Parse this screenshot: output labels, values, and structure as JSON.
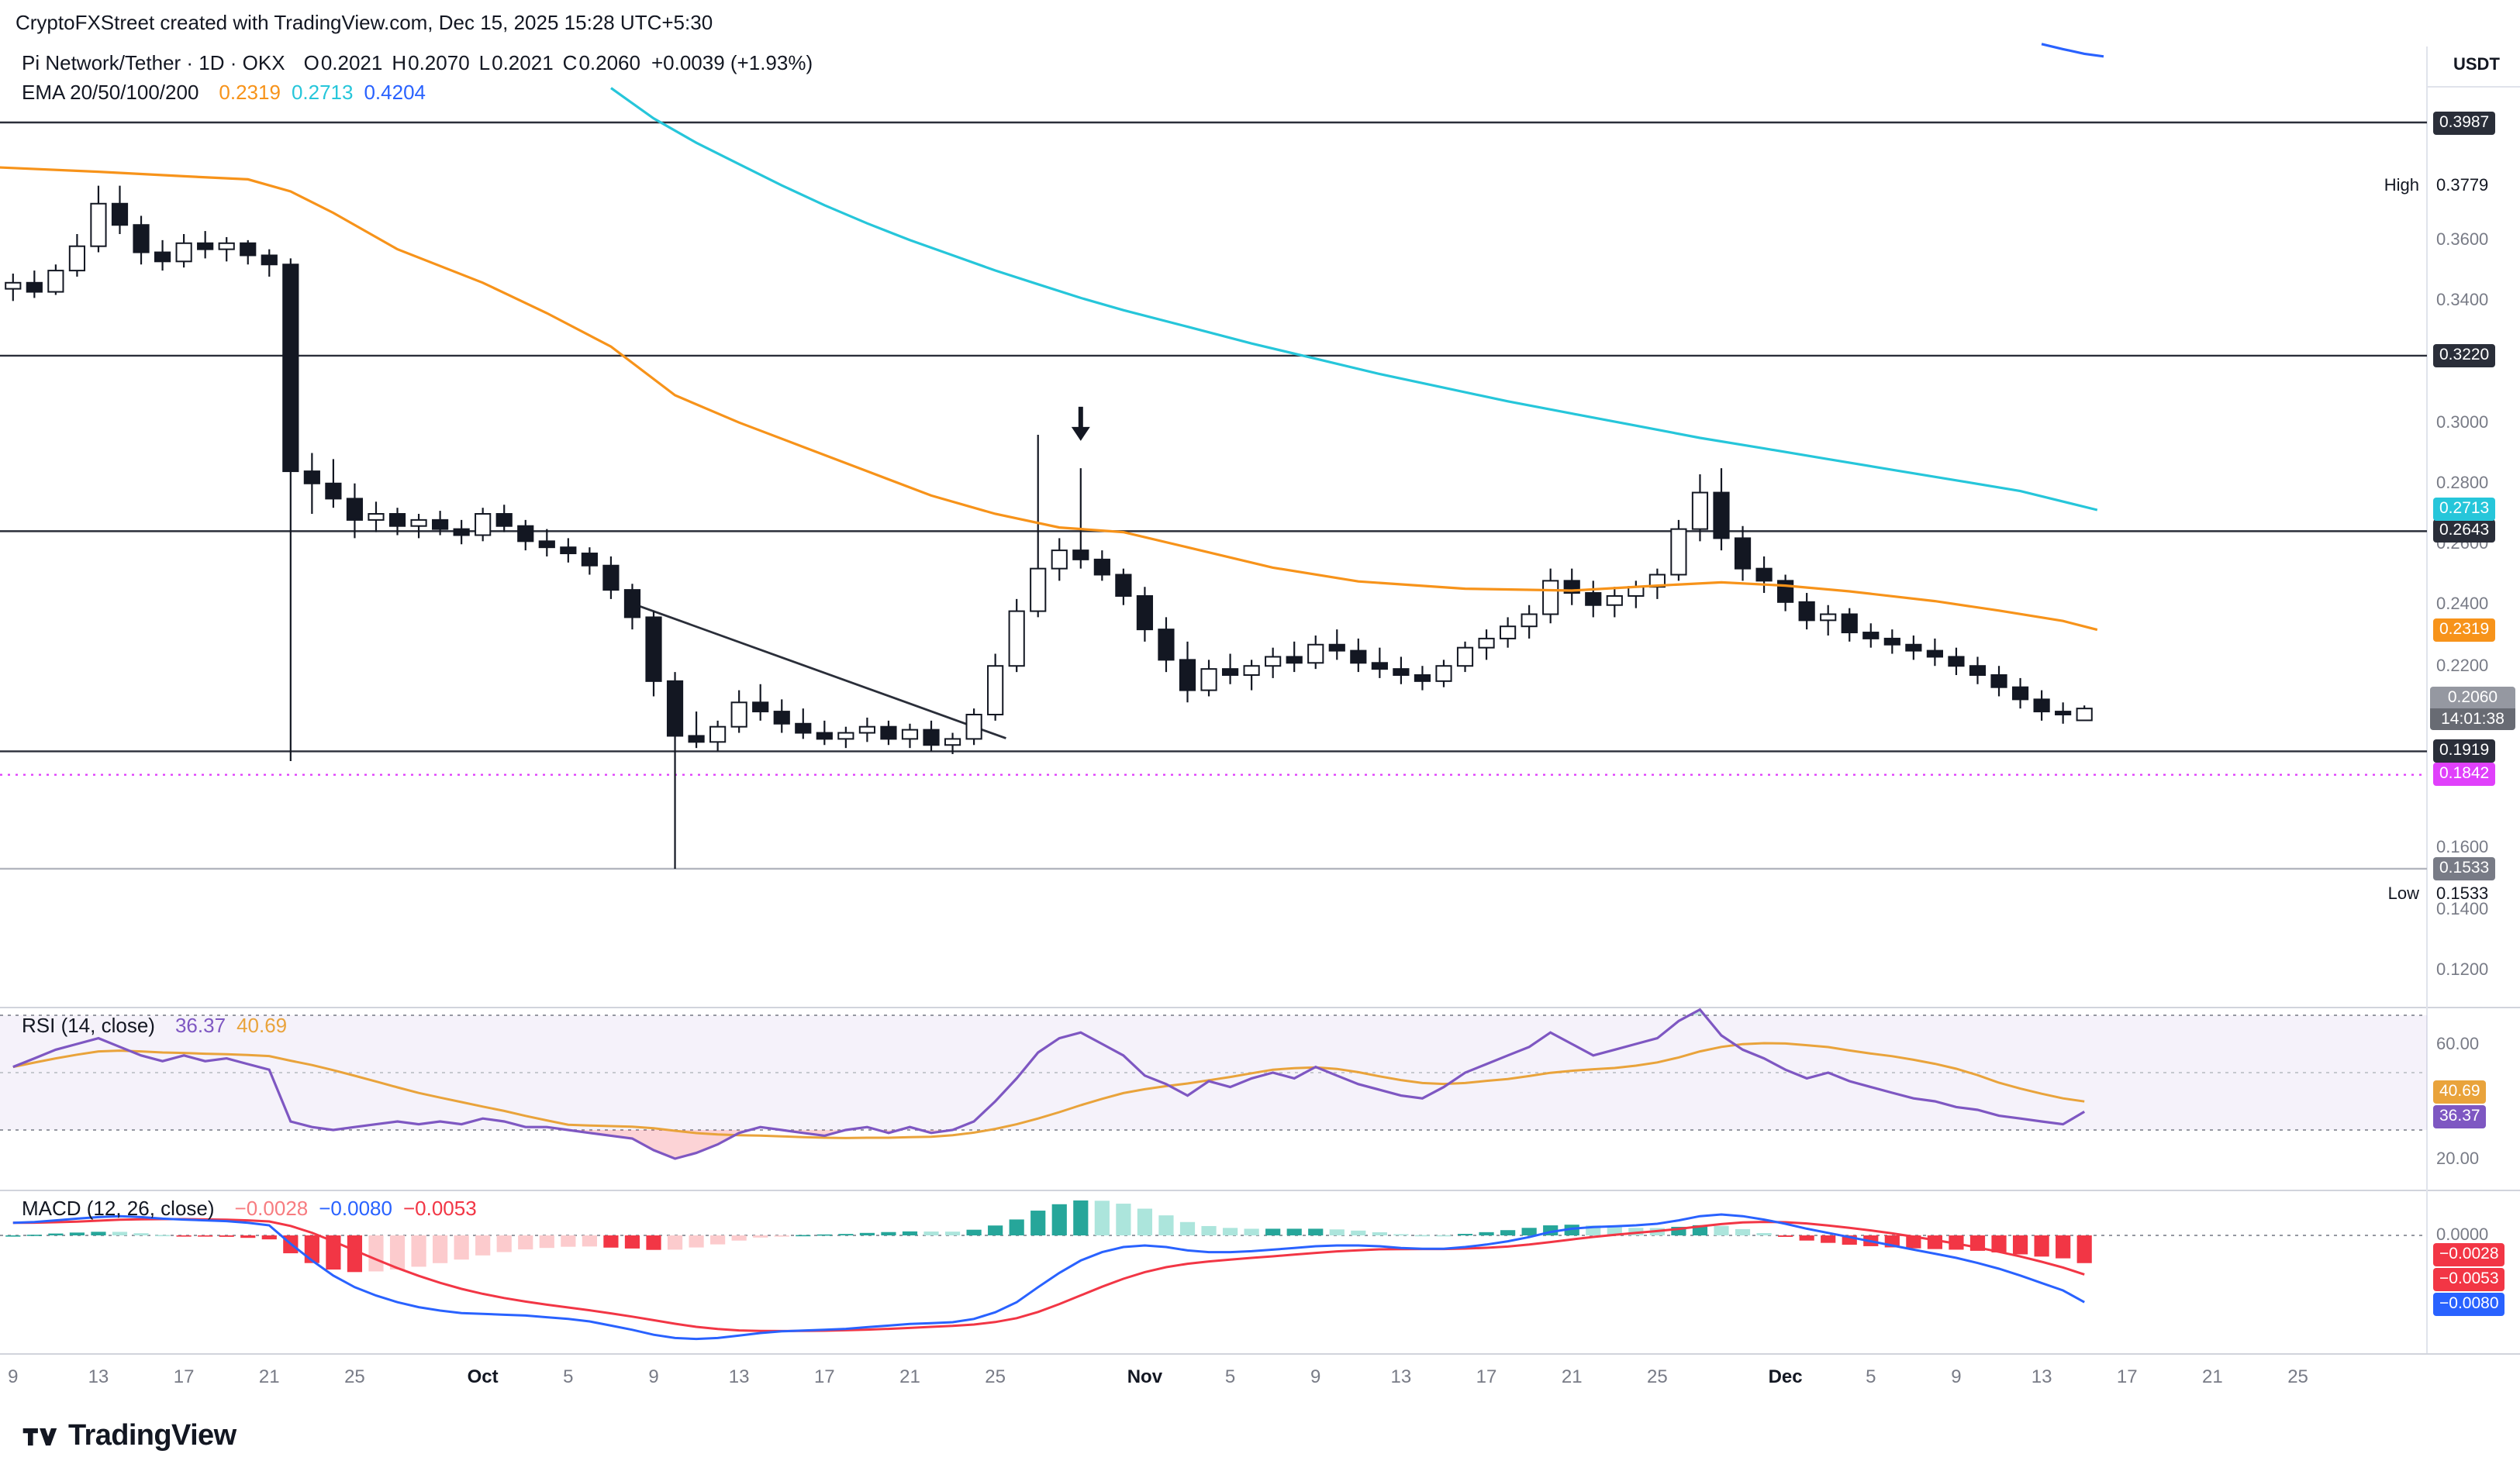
{
  "topbar": {
    "text": "CryptoFXStreet created with TradingView.com, Dec 15, 2025 15:28 UTC+5:30"
  },
  "symbol_legend": {
    "title": "Pi Network/Tether · 1D · OKX",
    "o_label": "O",
    "o": "0.2021",
    "h_label": "H",
    "h": "0.2070",
    "l_label": "L",
    "l": "0.2021",
    "c_label": "C",
    "c": "0.2060",
    "change": "+0.0039 (+1.93%)"
  },
  "ema_legend": {
    "label": "EMA 20/50/100/200"
  },
  "footer": {
    "brand": "TradingView"
  },
  "colors": {
    "up": "#FFFFFF",
    "down": "#131722",
    "wick": "#131722",
    "level_dark": "#2A2E39",
    "magenta": "#E040FB",
    "gray_line": "#B2B5BE",
    "separator": "#D1D4DC"
  },
  "chart_data": {
    "type": "candlestick",
    "symbol": "Pi Network/Tether",
    "exchange": "OKX",
    "interval": "1D",
    "start_date": "2025-09-09",
    "end_date": "2025-12-15",
    "price_axis": {
      "unit": "USDT",
      "ylim": [
        0.112,
        0.425
      ],
      "ticks": [
        {
          "label": "0.3600",
          "value": 0.36
        },
        {
          "label": "0.3400",
          "value": 0.34
        },
        {
          "label": "0.3000",
          "value": 0.3
        },
        {
          "label": "0.2800",
          "value": 0.28
        },
        {
          "label": "0.2600",
          "value": 0.26
        },
        {
          "label": "0.2400",
          "value": 0.24
        },
        {
          "label": "0.2200",
          "value": 0.22
        },
        {
          "label": "0.1600",
          "value": 0.16
        },
        {
          "label": "0.1400",
          "value": 0.14
        },
        {
          "label": "0.1200",
          "value": 0.12
        }
      ]
    },
    "levels": [
      {
        "price": 0.3987,
        "label": "0.3987",
        "style": "solid",
        "color": "#2A2E39",
        "badge_bg": "#2A2E39"
      },
      {
        "price": 0.322,
        "label": "0.3220",
        "style": "solid",
        "color": "#2A2E39",
        "badge_bg": "#2A2E39"
      },
      {
        "price": 0.2643,
        "label": "0.2643",
        "style": "solid",
        "color": "#2A2E39",
        "badge_bg": "#2A2E39"
      },
      {
        "price": 0.1919,
        "label": "0.1919",
        "style": "solid",
        "color": "#2A2E39",
        "badge_bg": "#2A2E39"
      },
      {
        "price": 0.1842,
        "label": "0.1842",
        "style": "dotted",
        "color": "#E040FB",
        "badge_bg": "#E040FB"
      },
      {
        "price": 0.1533,
        "label": "0.1533",
        "style": "solid",
        "color": "#B2B5BE",
        "badge_bg": "#787B86"
      }
    ],
    "high_marker": {
      "label": "High",
      "value": "0.3779",
      "price": 0.3779
    },
    "low_marker": {
      "label": "Low",
      "value": "0.1533",
      "price": 0.1533
    },
    "last_price": {
      "value": "0.2060",
      "countdown": "14:01:38",
      "price": 0.206,
      "badge_bg": "#9598A1",
      "countdown_bg": "#686B73"
    },
    "arrow_marker": {
      "index": 50,
      "price": 0.294,
      "direction": "down"
    },
    "trendline": {
      "from": {
        "index": 29,
        "price": 0.2405
      },
      "to": {
        "index": 46.5,
        "price": 0.1962
      }
    },
    "x_ticks": [
      {
        "label": "9",
        "i": 0
      },
      {
        "label": "13",
        "i": 4
      },
      {
        "label": "17",
        "i": 8
      },
      {
        "label": "21",
        "i": 12
      },
      {
        "label": "25",
        "i": 16
      },
      {
        "label": "Oct",
        "i": 22,
        "major": true
      },
      {
        "label": "5",
        "i": 26
      },
      {
        "label": "9",
        "i": 30
      },
      {
        "label": "13",
        "i": 34
      },
      {
        "label": "17",
        "i": 38
      },
      {
        "label": "21",
        "i": 42
      },
      {
        "label": "25",
        "i": 46
      },
      {
        "label": "Nov",
        "i": 53,
        "major": true
      },
      {
        "label": "5",
        "i": 57
      },
      {
        "label": "9",
        "i": 61
      },
      {
        "label": "13",
        "i": 65
      },
      {
        "label": "17",
        "i": 69
      },
      {
        "label": "21",
        "i": 73
      },
      {
        "label": "25",
        "i": 77
      },
      {
        "label": "Dec",
        "i": 83,
        "major": true
      },
      {
        "label": "5",
        "i": 87
      },
      {
        "label": "9",
        "i": 91
      },
      {
        "label": "13",
        "i": 95
      },
      {
        "label": "17",
        "i": 99
      },
      {
        "label": "21",
        "i": 103
      },
      {
        "label": "25",
        "i": 107
      }
    ],
    "candles": [
      [
        0.344,
        0.349,
        0.34,
        0.346
      ],
      [
        0.346,
        0.35,
        0.341,
        0.343
      ],
      [
        0.343,
        0.352,
        0.342,
        0.35
      ],
      [
        0.35,
        0.362,
        0.348,
        0.358
      ],
      [
        0.358,
        0.3779,
        0.356,
        0.372
      ],
      [
        0.372,
        0.3779,
        0.362,
        0.365
      ],
      [
        0.365,
        0.368,
        0.352,
        0.356
      ],
      [
        0.356,
        0.36,
        0.35,
        0.353
      ],
      [
        0.353,
        0.362,
        0.351,
        0.359
      ],
      [
        0.359,
        0.363,
        0.354,
        0.357
      ],
      [
        0.357,
        0.361,
        0.353,
        0.359
      ],
      [
        0.359,
        0.36,
        0.352,
        0.355
      ],
      [
        0.355,
        0.357,
        0.348,
        0.352
      ],
      [
        0.352,
        0.354,
        0.1887,
        0.284
      ],
      [
        0.284,
        0.29,
        0.27,
        0.28
      ],
      [
        0.28,
        0.288,
        0.272,
        0.275
      ],
      [
        0.275,
        0.28,
        0.262,
        0.268
      ],
      [
        0.268,
        0.274,
        0.264,
        0.27
      ],
      [
        0.27,
        0.272,
        0.263,
        0.266
      ],
      [
        0.266,
        0.27,
        0.262,
        0.268
      ],
      [
        0.268,
        0.271,
        0.263,
        0.265
      ],
      [
        0.265,
        0.268,
        0.26,
        0.263
      ],
      [
        0.263,
        0.272,
        0.261,
        0.27
      ],
      [
        0.27,
        0.273,
        0.264,
        0.266
      ],
      [
        0.266,
        0.268,
        0.258,
        0.261
      ],
      [
        0.261,
        0.265,
        0.256,
        0.259
      ],
      [
        0.259,
        0.262,
        0.254,
        0.257
      ],
      [
        0.257,
        0.259,
        0.25,
        0.253
      ],
      [
        0.253,
        0.256,
        0.242,
        0.245
      ],
      [
        0.245,
        0.247,
        0.232,
        0.236
      ],
      [
        0.236,
        0.238,
        0.21,
        0.215
      ],
      [
        0.215,
        0.218,
        0.1533,
        0.197
      ],
      [
        0.197,
        0.205,
        0.193,
        0.195
      ],
      [
        0.195,
        0.202,
        0.192,
        0.2
      ],
      [
        0.2,
        0.212,
        0.198,
        0.208
      ],
      [
        0.208,
        0.214,
        0.202,
        0.205
      ],
      [
        0.205,
        0.209,
        0.198,
        0.201
      ],
      [
        0.201,
        0.206,
        0.196,
        0.198
      ],
      [
        0.198,
        0.202,
        0.194,
        0.196
      ],
      [
        0.196,
        0.2,
        0.193,
        0.198
      ],
      [
        0.198,
        0.203,
        0.195,
        0.2
      ],
      [
        0.2,
        0.202,
        0.194,
        0.196
      ],
      [
        0.196,
        0.201,
        0.193,
        0.199
      ],
      [
        0.199,
        0.202,
        0.192,
        0.194
      ],
      [
        0.194,
        0.198,
        0.191,
        0.196
      ],
      [
        0.196,
        0.206,
        0.194,
        0.204
      ],
      [
        0.204,
        0.224,
        0.202,
        0.22
      ],
      [
        0.22,
        0.242,
        0.218,
        0.238
      ],
      [
        0.238,
        0.296,
        0.236,
        0.252
      ],
      [
        0.252,
        0.262,
        0.248,
        0.258
      ],
      [
        0.258,
        0.285,
        0.252,
        0.255
      ],
      [
        0.255,
        0.258,
        0.248,
        0.25
      ],
      [
        0.25,
        0.252,
        0.24,
        0.243
      ],
      [
        0.243,
        0.246,
        0.228,
        0.232
      ],
      [
        0.232,
        0.236,
        0.218,
        0.222
      ],
      [
        0.222,
        0.228,
        0.208,
        0.212
      ],
      [
        0.212,
        0.222,
        0.21,
        0.219
      ],
      [
        0.219,
        0.224,
        0.214,
        0.217
      ],
      [
        0.217,
        0.222,
        0.212,
        0.22
      ],
      [
        0.22,
        0.226,
        0.216,
        0.223
      ],
      [
        0.223,
        0.228,
        0.218,
        0.221
      ],
      [
        0.221,
        0.23,
        0.219,
        0.227
      ],
      [
        0.227,
        0.232,
        0.222,
        0.225
      ],
      [
        0.225,
        0.229,
        0.218,
        0.221
      ],
      [
        0.221,
        0.226,
        0.216,
        0.219
      ],
      [
        0.219,
        0.223,
        0.214,
        0.217
      ],
      [
        0.217,
        0.22,
        0.212,
        0.215
      ],
      [
        0.215,
        0.222,
        0.213,
        0.22
      ],
      [
        0.22,
        0.228,
        0.218,
        0.226
      ],
      [
        0.226,
        0.232,
        0.222,
        0.229
      ],
      [
        0.229,
        0.236,
        0.226,
        0.233
      ],
      [
        0.233,
        0.24,
        0.229,
        0.237
      ],
      [
        0.237,
        0.252,
        0.234,
        0.248
      ],
      [
        0.248,
        0.252,
        0.24,
        0.244
      ],
      [
        0.244,
        0.248,
        0.236,
        0.24
      ],
      [
        0.24,
        0.246,
        0.236,
        0.243
      ],
      [
        0.243,
        0.248,
        0.239,
        0.246
      ],
      [
        0.246,
        0.252,
        0.242,
        0.25
      ],
      [
        0.25,
        0.268,
        0.248,
        0.265
      ],
      [
        0.265,
        0.283,
        0.261,
        0.277
      ],
      [
        0.277,
        0.285,
        0.258,
        0.262
      ],
      [
        0.262,
        0.266,
        0.248,
        0.252
      ],
      [
        0.252,
        0.256,
        0.244,
        0.248
      ],
      [
        0.248,
        0.25,
        0.238,
        0.241
      ],
      [
        0.241,
        0.244,
        0.232,
        0.235
      ],
      [
        0.235,
        0.24,
        0.23,
        0.237
      ],
      [
        0.237,
        0.239,
        0.228,
        0.231
      ],
      [
        0.231,
        0.234,
        0.226,
        0.229
      ],
      [
        0.229,
        0.232,
        0.224,
        0.227
      ],
      [
        0.227,
        0.23,
        0.222,
        0.225
      ],
      [
        0.225,
        0.229,
        0.22,
        0.223
      ],
      [
        0.223,
        0.226,
        0.217,
        0.22
      ],
      [
        0.22,
        0.223,
        0.214,
        0.217
      ],
      [
        0.217,
        0.22,
        0.21,
        0.213
      ],
      [
        0.213,
        0.216,
        0.206,
        0.209
      ],
      [
        0.209,
        0.212,
        0.202,
        0.205
      ],
      [
        0.205,
        0.208,
        0.201,
        0.204
      ],
      [
        0.2021,
        0.207,
        0.2021,
        0.206
      ]
    ],
    "ema20": {
      "period": 20,
      "label": "0.2319",
      "last": 0.2319,
      "color": "#F7931A",
      "points": [
        [
          -1,
          0.384
        ],
        [
          4,
          0.3825
        ],
        [
          8,
          0.381
        ],
        [
          11,
          0.38
        ],
        [
          13,
          0.376
        ],
        [
          15,
          0.369
        ],
        [
          18,
          0.357
        ],
        [
          22,
          0.346
        ],
        [
          25,
          0.336
        ],
        [
          28,
          0.325
        ],
        [
          31,
          0.309
        ],
        [
          34,
          0.3
        ],
        [
          37,
          0.292
        ],
        [
          40,
          0.284
        ],
        [
          43,
          0.276
        ],
        [
          46,
          0.27
        ],
        [
          49,
          0.2655
        ],
        [
          52,
          0.264
        ],
        [
          55,
          0.259
        ],
        [
          59,
          0.2523
        ],
        [
          63,
          0.2478
        ],
        [
          68,
          0.2454
        ],
        [
          73,
          0.2448
        ],
        [
          77,
          0.2464
        ],
        [
          80,
          0.2475
        ],
        [
          83,
          0.2464
        ],
        [
          86,
          0.2445
        ],
        [
          90,
          0.2413
        ],
        [
          93,
          0.2382
        ],
        [
          96,
          0.2348
        ],
        [
          97.6,
          0.2319
        ]
      ]
    },
    "ema50": {
      "period": 50,
      "label": "0.2713",
      "last": 0.2713,
      "color": "#26C6DA",
      "points": [
        [
          28,
          0.41
        ],
        [
          30,
          0.4
        ],
        [
          32,
          0.392
        ],
        [
          34,
          0.385
        ],
        [
          36,
          0.378
        ],
        [
          38,
          0.3715
        ],
        [
          40,
          0.3655
        ],
        [
          42,
          0.36
        ],
        [
          44,
          0.355
        ],
        [
          46,
          0.35
        ],
        [
          48,
          0.3455
        ],
        [
          50,
          0.341
        ],
        [
          52,
          0.337
        ],
        [
          55,
          0.3315
        ],
        [
          58,
          0.326
        ],
        [
          61,
          0.321
        ],
        [
          64,
          0.316
        ],
        [
          67,
          0.3115
        ],
        [
          70,
          0.307
        ],
        [
          73,
          0.303
        ],
        [
          76,
          0.299
        ],
        [
          79,
          0.295
        ],
        [
          82,
          0.2915
        ],
        [
          85,
          0.288
        ],
        [
          88,
          0.2845
        ],
        [
          91,
          0.281
        ],
        [
          94,
          0.2775
        ],
        [
          97.6,
          0.2713
        ]
      ]
    },
    "ema100": {
      "period": 100,
      "label": "0.4204",
      "last": 0.4204,
      "color": "#2962FF",
      "points": [
        [
          95,
          0.4245
        ],
        [
          96,
          0.4228
        ],
        [
          97,
          0.4213
        ],
        [
          97.9,
          0.4204
        ]
      ]
    },
    "rsi": {
      "label": "RSI (14, close)",
      "last": "36.37",
      "ma_last": "40.69",
      "line_color": "#7E57C2",
      "ma_color": "#E9A33B",
      "band": [
        30,
        70
      ],
      "ticks": [
        {
          "label": "60.00",
          "value": 60
        },
        {
          "label": "20.00",
          "value": 20
        }
      ],
      "values": [
        52,
        55,
        58,
        60,
        62,
        59,
        56,
        54,
        56,
        54,
        55,
        53,
        51,
        33,
        31,
        30,
        31,
        32,
        33,
        32,
        33,
        32,
        34,
        33,
        31,
        31,
        30,
        29,
        28,
        27,
        23,
        20,
        22,
        25,
        29,
        31,
        30,
        29,
        28,
        30,
        31,
        29,
        31,
        29,
        30,
        33,
        40,
        48,
        57,
        62,
        64,
        60,
        56,
        49,
        46,
        42,
        47,
        45,
        48,
        50,
        48,
        52,
        49,
        46,
        44,
        42,
        41,
        45,
        50,
        53,
        56,
        59,
        64,
        60,
        56,
        58,
        60,
        62,
        68,
        72,
        63,
        58,
        55,
        51,
        48,
        50,
        47,
        45,
        43,
        41,
        40,
        38,
        37,
        35,
        34,
        33,
        32,
        36.37
      ]
    },
    "macd": {
      "label": "MACD (12, 26, close)",
      "last_hist": "−0.0028",
      "last_macd": "−0.0080",
      "last_signal": "−0.0053",
      "hist_legend_color": "#F77C80",
      "macd_color": "#2962FF",
      "signal_color": "#F23645",
      "ticks": [
        {
          "label": "0.0000",
          "value": 0
        }
      ],
      "macd_values": [
        0.0015,
        0.0016,
        0.0018,
        0.002,
        0.0022,
        0.0023,
        0.0022,
        0.002,
        0.0019,
        0.0018,
        0.0017,
        0.0015,
        0.0012,
        -0.001,
        -0.003,
        -0.0048,
        -0.0062,
        -0.0072,
        -0.008,
        -0.0086,
        -0.009,
        -0.0093,
        -0.0094,
        -0.0095,
        -0.0096,
        -0.0098,
        -0.01,
        -0.0103,
        -0.0108,
        -0.0113,
        -0.0119,
        -0.0123,
        -0.0124,
        -0.0123,
        -0.012,
        -0.0117,
        -0.0115,
        -0.0114,
        -0.0113,
        -0.0112,
        -0.011,
        -0.0108,
        -0.0106,
        -0.0105,
        -0.0104,
        -0.01,
        -0.0092,
        -0.008,
        -0.0062,
        -0.0045,
        -0.003,
        -0.002,
        -0.0014,
        -0.0012,
        -0.0014,
        -0.0018,
        -0.002,
        -0.002,
        -0.0019,
        -0.0017,
        -0.0015,
        -0.0013,
        -0.0012,
        -0.0012,
        -0.0013,
        -0.0015,
        -0.0016,
        -0.0016,
        -0.0014,
        -0.0011,
        -0.0007,
        -0.0002,
        0.0004,
        0.0008,
        0.001,
        0.0011,
        0.0012,
        0.0014,
        0.0018,
        0.0023,
        0.0025,
        0.0023,
        0.0019,
        0.0014,
        0.0008,
        0.0003,
        -0.0002,
        -0.0007,
        -0.0012,
        -0.0017,
        -0.0022,
        -0.0027,
        -0.0033,
        -0.004,
        -0.0048,
        -0.0057,
        -0.0066,
        -0.008
      ]
    }
  }
}
